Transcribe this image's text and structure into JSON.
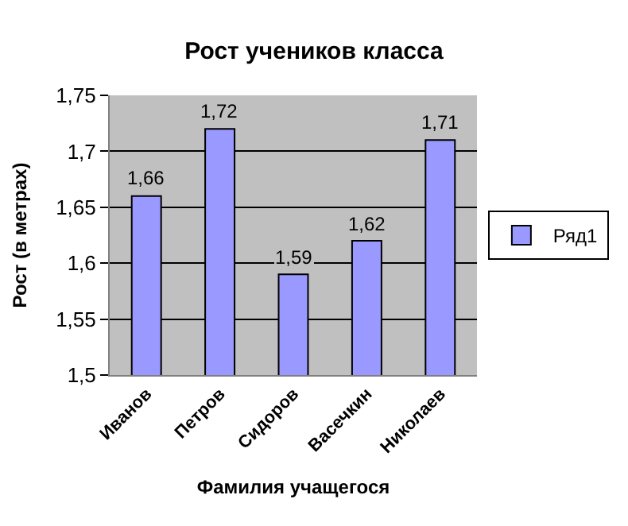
{
  "chart_data": {
    "type": "bar",
    "title": "Рост учеников класса",
    "xlabel": "Фамилия учащегося",
    "ylabel": "Рост (в метрах)",
    "categories": [
      "Иванов",
      "Петров",
      "Сидоров",
      "Васечкин",
      "Николаев"
    ],
    "series": [
      {
        "name": "Ряд1",
        "color": "#9999ff",
        "values": [
          1.66,
          1.72,
          1.59,
          1.62,
          1.71
        ],
        "value_labels": [
          "1,66",
          "1,72",
          "1,59",
          "1,62",
          "1,71"
        ]
      }
    ],
    "ylim": [
      1.5,
      1.75
    ],
    "yticks": [
      {
        "value": 1.5,
        "label": "1,5"
      },
      {
        "value": 1.55,
        "label": "1,55"
      },
      {
        "value": 1.6,
        "label": "1,6"
      },
      {
        "value": 1.65,
        "label": "1,65"
      },
      {
        "value": 1.7,
        "label": "1,7"
      },
      {
        "value": 1.75,
        "label": "1,75"
      }
    ],
    "grid": "y",
    "legend": "right"
  }
}
